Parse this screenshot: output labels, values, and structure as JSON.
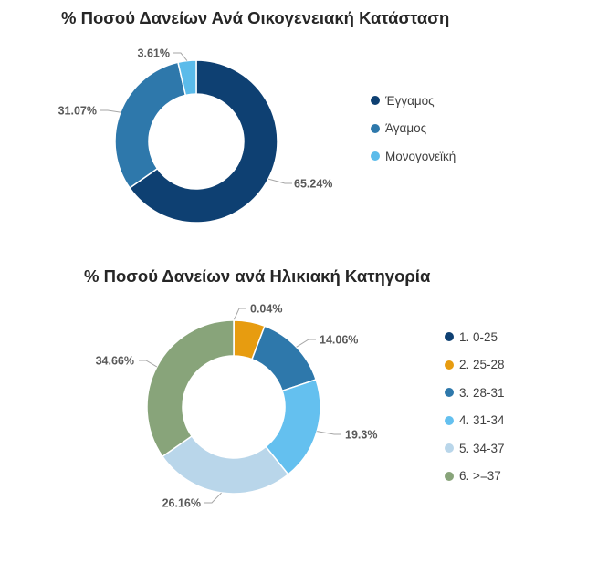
{
  "chart_data": [
    {
      "type": "pie",
      "title": "% Ποσού Δανείων Ανά Οικογενειακή Κατάσταση",
      "categories": [
        "Έγγαμος",
        "Άγαμος",
        "Μονογονεϊκή"
      ],
      "values": [
        65.24,
        31.07,
        3.61
      ],
      "labels": [
        "65.24%",
        "31.07%",
        "3.61%"
      ],
      "colors": [
        "#0e4072",
        "#2e78ab",
        "#5bbbea"
      ],
      "legend": "right"
    },
    {
      "type": "pie",
      "title": "% Ποσού Δανείων ανά Ηλικιακή Κατηγορία",
      "categories": [
        "1. 0-25",
        "2. 25-28",
        "3. 28-31",
        "4. 31-34",
        "5. 34-37",
        "6. >=37"
      ],
      "values": [
        0.04,
        5.78,
        14.06,
        19.3,
        26.16,
        34.66
      ],
      "labels": [
        "0.04%",
        "",
        "14.06%",
        "19.3%",
        "26.16%",
        "34.66%"
      ],
      "colors": [
        "#0e4072",
        "#e79c10",
        "#2e78ab",
        "#64c0ef",
        "#b9d6ea",
        "#88a47a"
      ],
      "legend": "right"
    }
  ]
}
